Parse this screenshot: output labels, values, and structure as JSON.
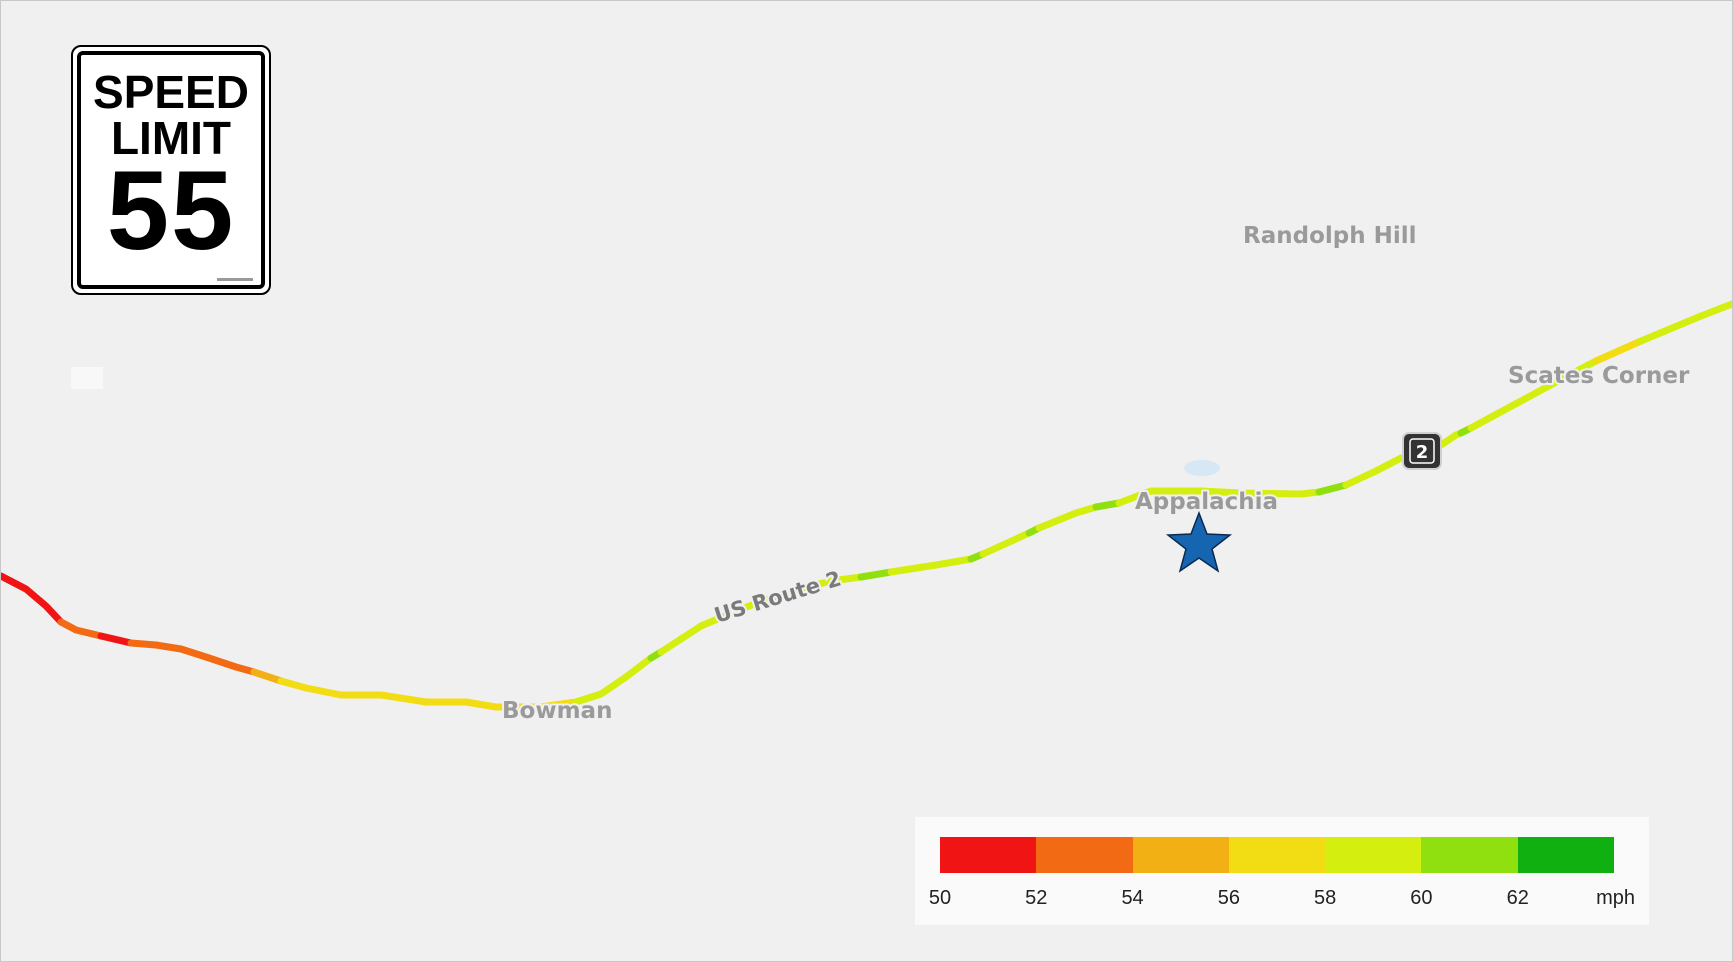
{
  "sign": {
    "line1": "SPEED",
    "line2": "LIMIT",
    "limit": "55"
  },
  "places": {
    "randolph_hill": "Randolph Hill",
    "scates_corner": "Scates Corner",
    "appalachia": "Appalachia",
    "bowman": "Bowman"
  },
  "road": {
    "label": "US Route 2",
    "shield_number": "2"
  },
  "marker": {
    "icon": "star-icon",
    "color": "#1565b0"
  },
  "legend": {
    "unit": "mph",
    "ticks": [
      "50",
      "52",
      "54",
      "56",
      "58",
      "60",
      "62"
    ],
    "colors": [
      "#f01414",
      "#f26a14",
      "#f2b014",
      "#f2dc14",
      "#d4ee10",
      "#90e010",
      "#10b010"
    ]
  }
}
